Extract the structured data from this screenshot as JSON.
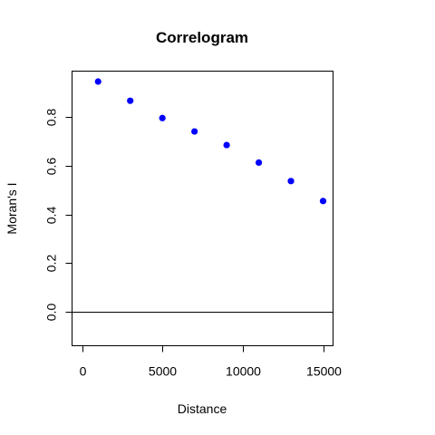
{
  "chart_data": {
    "type": "scatter",
    "title": "Correlogram",
    "xlabel": "Distance",
    "ylabel": "Moran's I",
    "xlim": [
      0,
      15000
    ],
    "ylim": [
      -0.13,
      0.98
    ],
    "x_ticks": [
      0,
      5000,
      10000,
      15000
    ],
    "x_tick_labels": [
      "0",
      "5000",
      "10000",
      "15000"
    ],
    "y_ticks": [
      0.0,
      0.2,
      0.4,
      0.6,
      0.8
    ],
    "y_tick_labels": [
      "0.0",
      "0.2",
      "0.4",
      "0.6",
      "0.8"
    ],
    "reference_line_y": 0,
    "grid": false,
    "legend": "none",
    "point_color": "#0000ff",
    "series": [
      {
        "x": [
          1000,
          3000,
          5000,
          7000,
          9000,
          11000,
          13000,
          15000
        ],
        "y": [
          0.946,
          0.867,
          0.796,
          0.741,
          0.685,
          0.613,
          0.537,
          0.455
        ]
      }
    ]
  }
}
